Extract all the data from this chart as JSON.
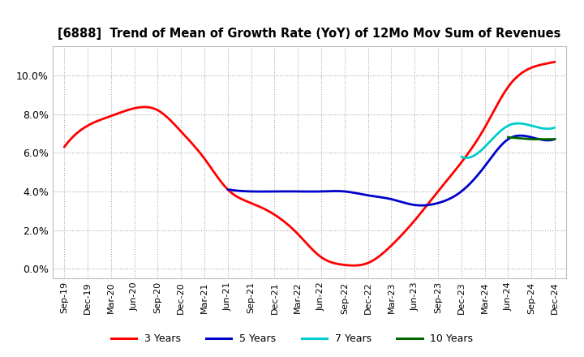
{
  "title": "[6888]  Trend of Mean of Growth Rate (YoY) of 12Mo Mov Sum of Revenues",
  "background_color": "#ffffff",
  "plot_background": "#ffffff",
  "grid_color": "#aaaaaa",
  "ylim": [
    -0.005,
    0.115
  ],
  "yticks": [
    0.0,
    0.02,
    0.04,
    0.06,
    0.08,
    0.1
  ],
  "x_labels": [
    "Sep-19",
    "Dec-19",
    "Mar-20",
    "Jun-20",
    "Sep-20",
    "Dec-20",
    "Mar-21",
    "Jun-21",
    "Sep-21",
    "Dec-21",
    "Mar-22",
    "Jun-22",
    "Sep-22",
    "Dec-22",
    "Mar-23",
    "Jun-23",
    "Sep-23",
    "Dec-23",
    "Mar-24",
    "Jun-24",
    "Sep-24",
    "Dec-24"
  ],
  "series": {
    "3 Years": {
      "color": "#ff0000",
      "linewidth": 2.0,
      "values": [
        0.063,
        0.074,
        0.079,
        0.083,
        0.082,
        0.071,
        0.057,
        0.041,
        0.034,
        0.028,
        0.018,
        0.006,
        0.002,
        0.003,
        0.012,
        0.025,
        0.04,
        0.055,
        0.073,
        0.094,
        0.104,
        0.107
      ]
    },
    "5 Years": {
      "color": "#0000cc",
      "linewidth": 2.0,
      "values": [
        null,
        null,
        null,
        null,
        null,
        null,
        null,
        0.041,
        0.04,
        0.04,
        0.04,
        0.04,
        0.04,
        0.038,
        0.036,
        0.033,
        0.034,
        0.04,
        0.053,
        0.067,
        0.068,
        0.067
      ]
    },
    "7 Years": {
      "color": "#00cccc",
      "linewidth": 2.0,
      "values": [
        null,
        null,
        null,
        null,
        null,
        null,
        null,
        null,
        null,
        null,
        null,
        null,
        null,
        null,
        null,
        null,
        null,
        0.058,
        0.063,
        0.074,
        0.074,
        0.073
      ]
    },
    "10 Years": {
      "color": "#006600",
      "linewidth": 2.0,
      "values": [
        null,
        null,
        null,
        null,
        null,
        null,
        null,
        null,
        null,
        null,
        null,
        null,
        null,
        null,
        null,
        null,
        null,
        null,
        null,
        0.068,
        0.067,
        0.067
      ]
    }
  },
  "legend": {
    "entries": [
      "3 Years",
      "5 Years",
      "7 Years",
      "10 Years"
    ]
  }
}
